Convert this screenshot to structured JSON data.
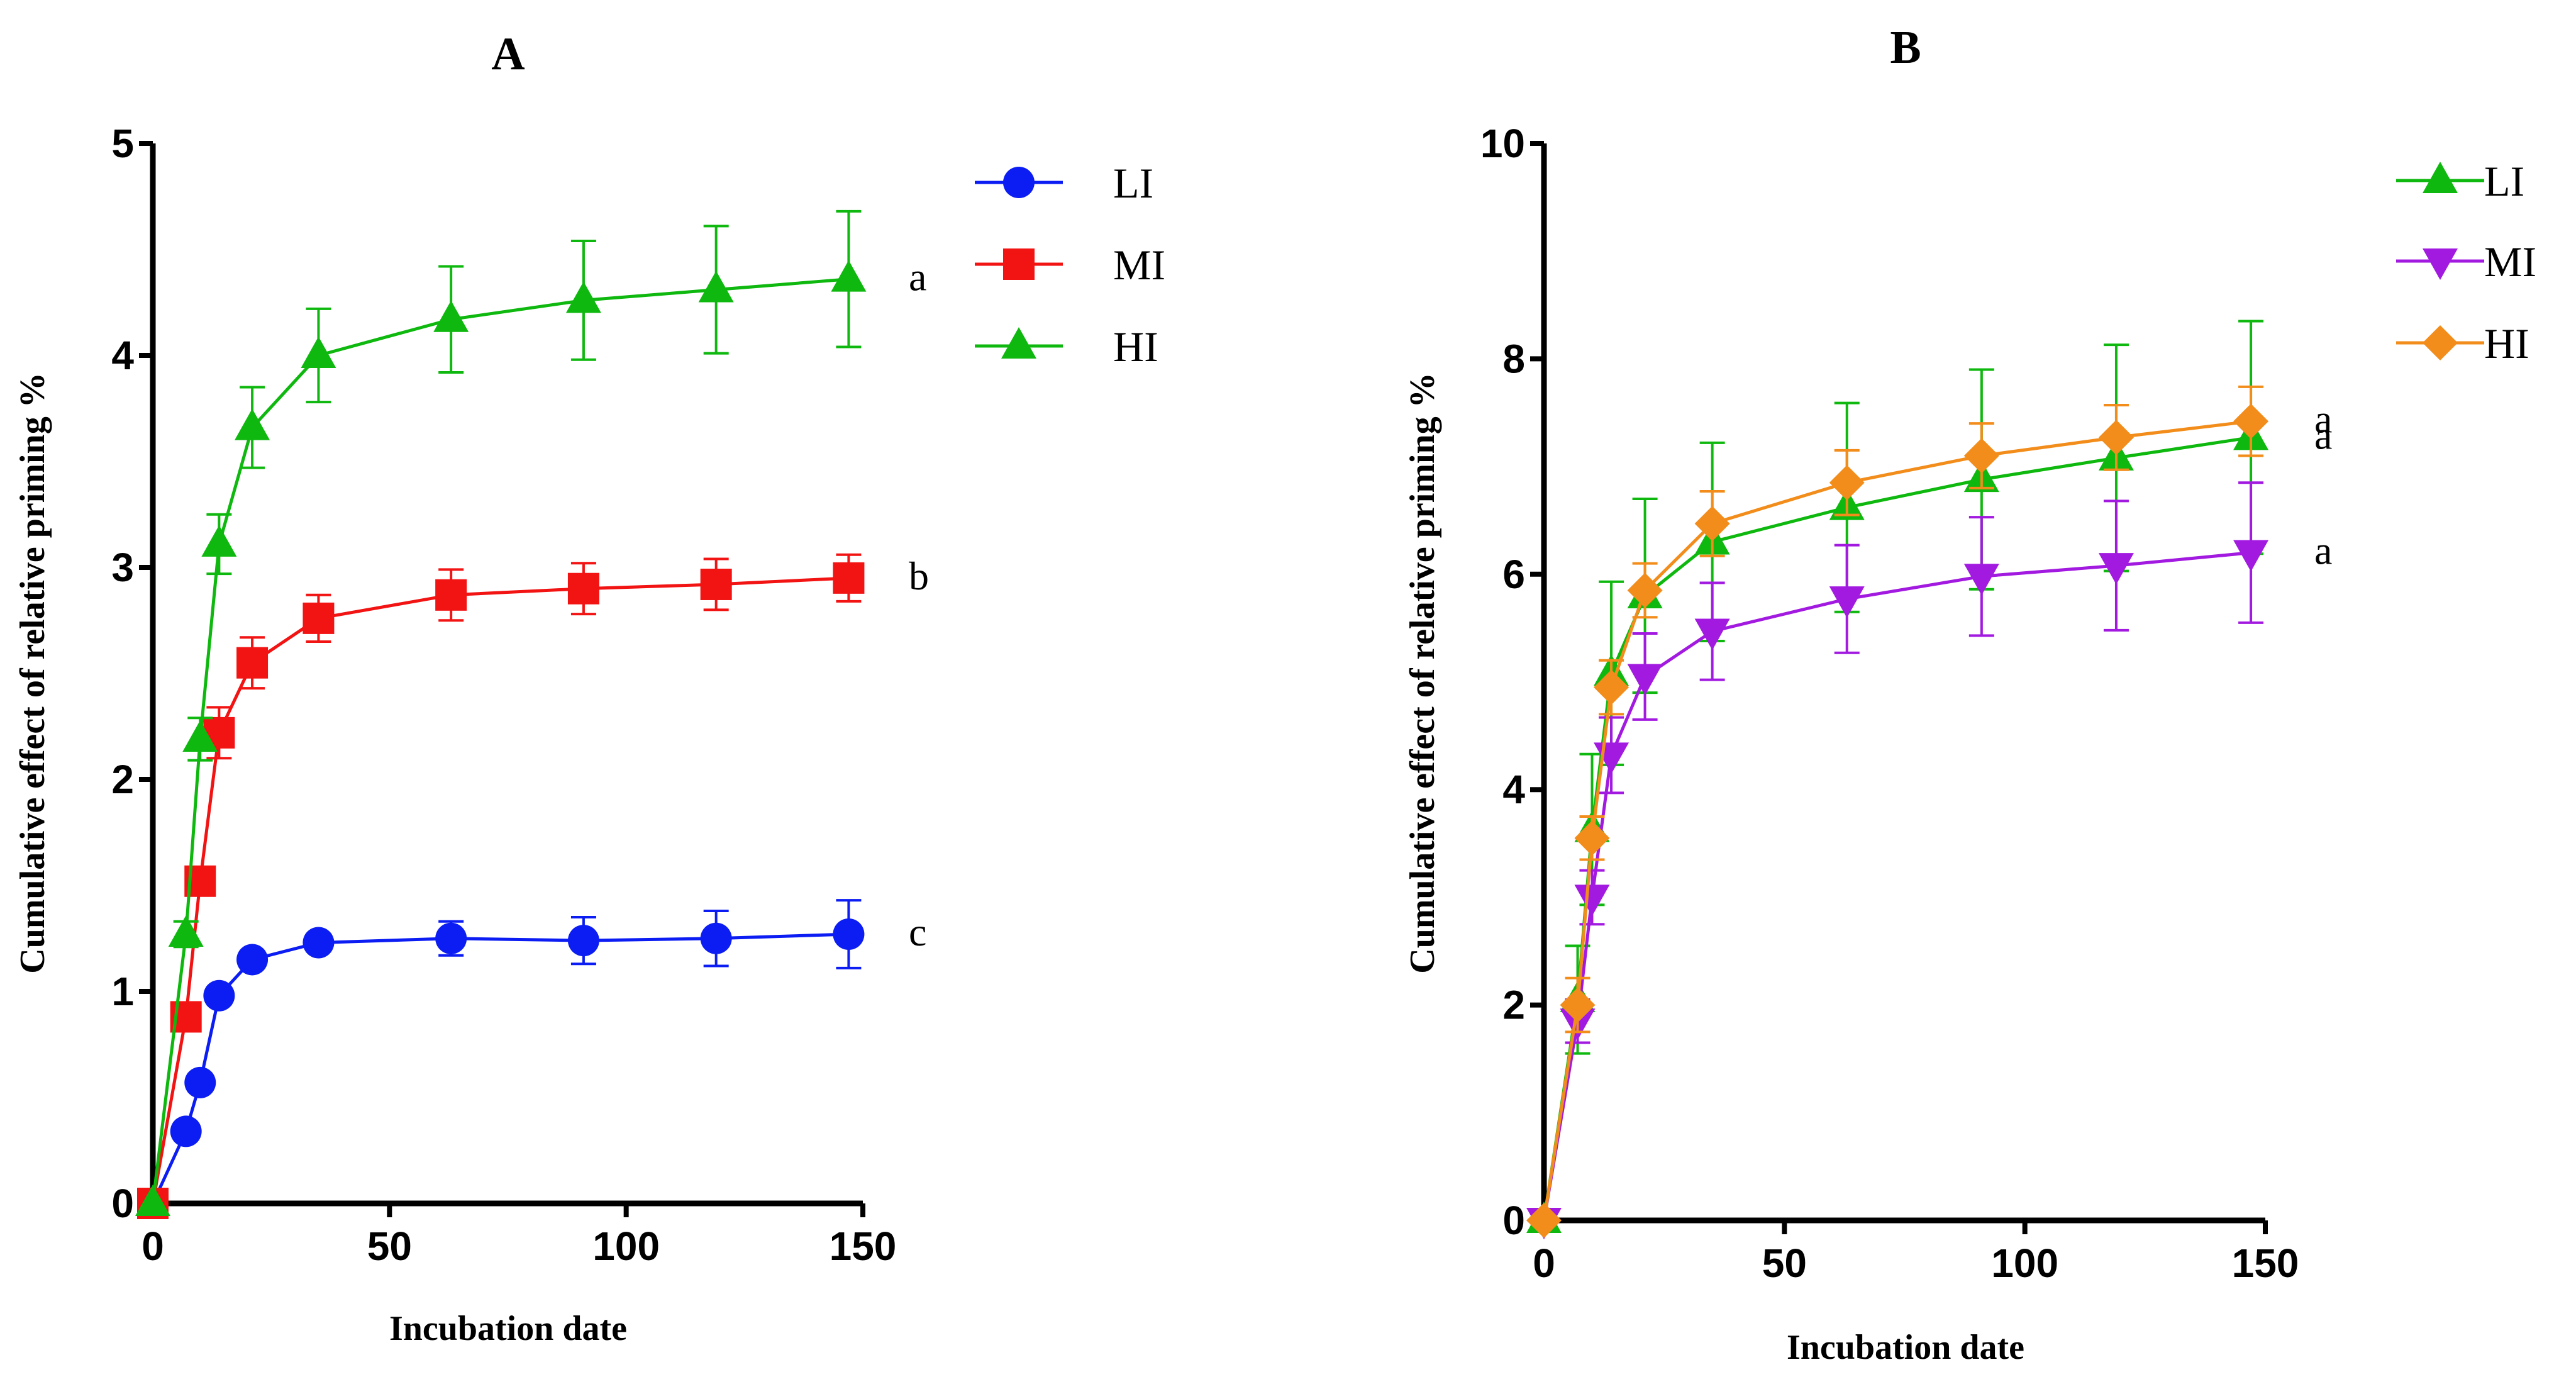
{
  "chart_data": [
    {
      "type": "line",
      "title": "A",
      "xlabel": "Incubation date",
      "ylabel": "Cumulative effect of relative priming %",
      "xlim": [
        0,
        150
      ],
      "ylim": [
        0,
        5
      ],
      "xticks": [
        0,
        50,
        100,
        150
      ],
      "yticks": [
        0,
        1,
        2,
        3,
        4,
        5
      ],
      "legend_position": "top-right",
      "series": [
        {
          "name": "LI",
          "color": "#0b1df2",
          "marker": "circle",
          "x": [
            0,
            7,
            10,
            14,
            21,
            35,
            63,
            91,
            119,
            147
          ],
          "y": [
            0,
            0.34,
            0.57,
            0.98,
            1.15,
            1.23,
            1.25,
            1.24,
            1.25,
            1.27
          ],
          "err": [
            0,
            0.03,
            0.04,
            0.04,
            0.04,
            0.04,
            0.08,
            0.11,
            0.13,
            0.16
          ],
          "annotation": "c"
        },
        {
          "name": "MI",
          "color": "#f21313",
          "marker": "square",
          "x": [
            0,
            7,
            10,
            14,
            21,
            35,
            63,
            91,
            119,
            147
          ],
          "y": [
            0,
            0.88,
            1.52,
            2.22,
            2.55,
            2.76,
            2.87,
            2.9,
            2.92,
            2.95
          ],
          "err": [
            0,
            0.05,
            0.06,
            0.12,
            0.12,
            0.11,
            0.12,
            0.12,
            0.12,
            0.11
          ],
          "annotation": "b"
        },
        {
          "name": "HI",
          "color": "#0eb80e",
          "marker": "triangle-up",
          "x": [
            0,
            7,
            10,
            14,
            21,
            35,
            63,
            91,
            119,
            147
          ],
          "y": [
            0,
            1.27,
            2.19,
            3.11,
            3.66,
            4.0,
            4.17,
            4.26,
            4.31,
            4.36
          ],
          "err": [
            0,
            0.06,
            0.1,
            0.14,
            0.19,
            0.22,
            0.25,
            0.28,
            0.3,
            0.32
          ],
          "annotation": "a"
        }
      ]
    },
    {
      "type": "line",
      "title": "B",
      "xlabel": "Incubation date",
      "ylabel": "Cumulative effect of relative priming %",
      "xlim": [
        0,
        150
      ],
      "ylim": [
        0,
        10
      ],
      "xticks": [
        0,
        50,
        100,
        150
      ],
      "yticks": [
        0,
        2,
        4,
        6,
        8,
        10
      ],
      "legend_position": "top-right",
      "series": [
        {
          "name": "LI",
          "color": "#0eb80e",
          "marker": "triangle-up",
          "x": [
            0,
            7,
            10,
            14,
            21,
            35,
            63,
            91,
            119,
            147
          ],
          "y": [
            0,
            2.05,
            3.63,
            5.08,
            5.8,
            6.3,
            6.62,
            6.88,
            7.08,
            7.27
          ],
          "err": [
            0,
            0.5,
            0.7,
            0.85,
            0.9,
            0.92,
            0.97,
            1.02,
            1.05,
            1.08
          ],
          "annotation": "a"
        },
        {
          "name": "MI",
          "color": "#a21ae0",
          "marker": "triangle-down",
          "x": [
            0,
            7,
            10,
            14,
            21,
            35,
            63,
            91,
            119,
            147
          ],
          "y": [
            0,
            1.85,
            3.0,
            4.32,
            5.05,
            5.47,
            5.77,
            5.98,
            6.08,
            6.2
          ],
          "err": [
            0,
            0.2,
            0.25,
            0.35,
            0.4,
            0.45,
            0.5,
            0.55,
            0.6,
            0.65
          ],
          "annotation": "a"
        },
        {
          "name": "HI",
          "color": "#f28d1b",
          "marker": "diamond",
          "x": [
            0,
            7,
            10,
            14,
            21,
            35,
            63,
            91,
            119,
            147
          ],
          "y": [
            0,
            2.0,
            3.55,
            4.95,
            5.85,
            6.47,
            6.85,
            7.1,
            7.27,
            7.42
          ],
          "err": [
            0,
            0.25,
            0.2,
            0.25,
            0.25,
            0.3,
            0.3,
            0.3,
            0.3,
            0.32
          ],
          "annotation": "a"
        }
      ]
    }
  ]
}
